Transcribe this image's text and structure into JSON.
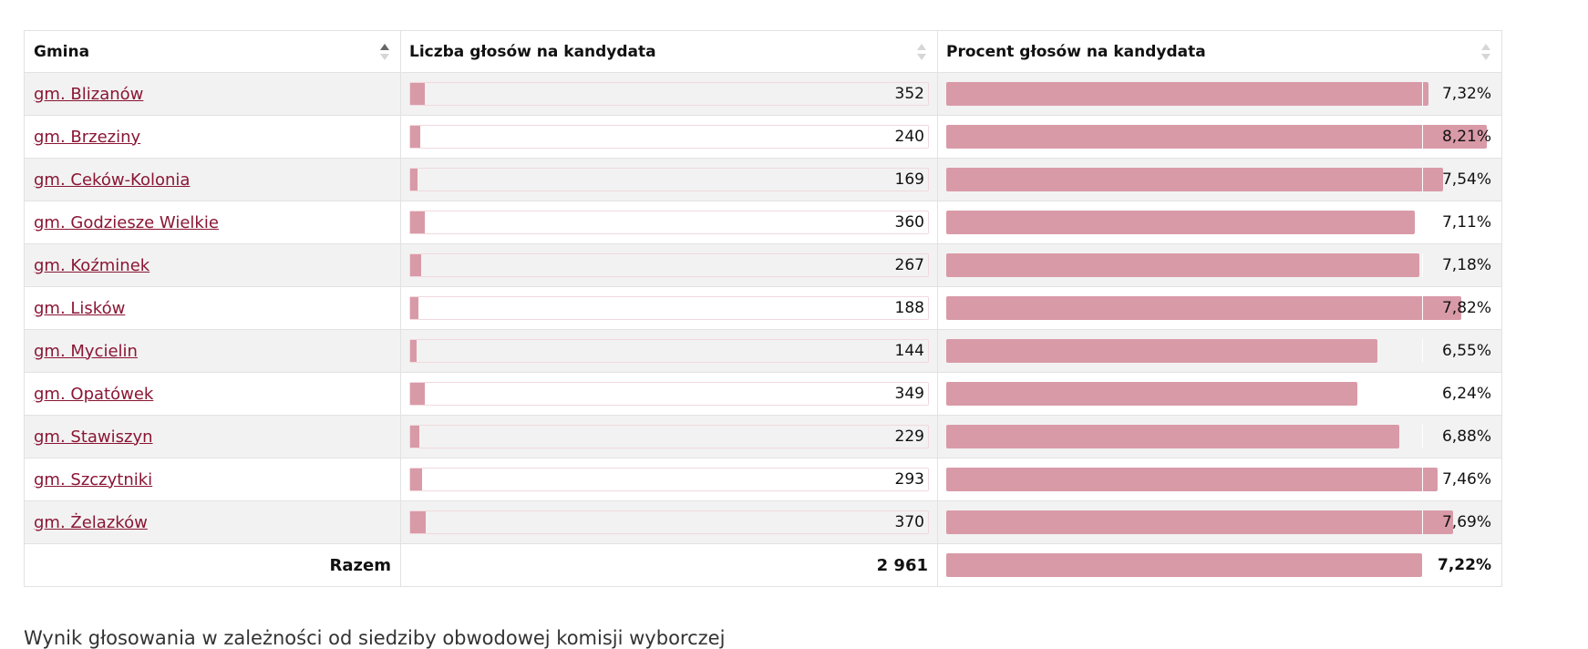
{
  "header": {
    "col1": "Gmina",
    "col2": "Liczba głosów na kandydata",
    "col3": "Procent głosów na kandydata"
  },
  "colors": {
    "bar": "#d99aa8",
    "link": "#8a1634"
  },
  "icons": {
    "sort": "sort-icon"
  },
  "rows": [
    {
      "gmina": "gm. Blizanów",
      "votes": "352",
      "votes_n": 352,
      "percent": "7,32%",
      "percent_n": 7.32
    },
    {
      "gmina": "gm. Brzeziny",
      "votes": "240",
      "votes_n": 240,
      "percent": "8,21%",
      "percent_n": 8.21
    },
    {
      "gmina": "gm. Ceków-Kolonia",
      "votes": "169",
      "votes_n": 169,
      "percent": "7,54%",
      "percent_n": 7.54
    },
    {
      "gmina": "gm. Godziesze Wielkie",
      "votes": "360",
      "votes_n": 360,
      "percent": "7,11%",
      "percent_n": 7.11
    },
    {
      "gmina": "gm. Koźminek",
      "votes": "267",
      "votes_n": 267,
      "percent": "7,18%",
      "percent_n": 7.18
    },
    {
      "gmina": "gm. Lisków",
      "votes": "188",
      "votes_n": 188,
      "percent": "7,82%",
      "percent_n": 7.82
    },
    {
      "gmina": "gm. Mycielin",
      "votes": "144",
      "votes_n": 144,
      "percent": "6,55%",
      "percent_n": 6.55
    },
    {
      "gmina": "gm. Opatówek",
      "votes": "349",
      "votes_n": 349,
      "percent": "6,24%",
      "percent_n": 6.24
    },
    {
      "gmina": "gm. Stawiszyn",
      "votes": "229",
      "votes_n": 229,
      "percent": "6,88%",
      "percent_n": 6.88
    },
    {
      "gmina": "gm. Szczytniki",
      "votes": "293",
      "votes_n": 293,
      "percent": "7,46%",
      "percent_n": 7.46
    },
    {
      "gmina": "gm. Żelazków",
      "votes": "370",
      "votes_n": 370,
      "percent": "7,69%",
      "percent_n": 7.69
    }
  ],
  "total": {
    "label": "Razem",
    "votes": "2 961",
    "votes_n": 2961,
    "percent": "7,22%",
    "percent_n": 7.22
  },
  "footer_text": "Wynik głosowania w zależności od siedziby obwodowej komisji wyborczej"
}
